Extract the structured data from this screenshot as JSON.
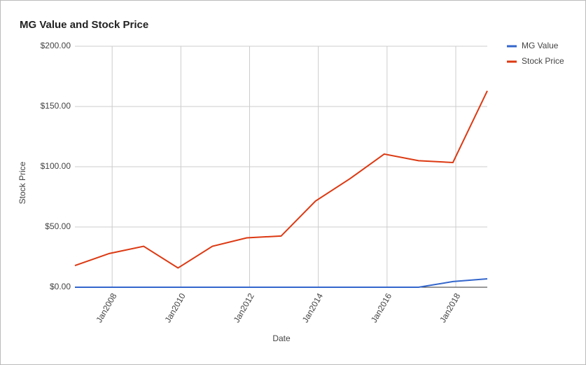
{
  "chart_data": {
    "type": "line",
    "title": "MG Value and Stock Price",
    "x_label": "Date",
    "y_label": "Stock Price",
    "x": [
      "2006-12",
      "2007-12",
      "2008-12",
      "2009-12",
      "2010-12",
      "2011-12",
      "2012-12",
      "2013-12",
      "2014-12",
      "2015-12",
      "2016-12",
      "2017-12",
      "2018-12"
    ],
    "series": [
      {
        "name": "MG Value",
        "color": "#3366cc",
        "values": [
          0,
          0,
          0,
          0,
          0,
          0,
          0,
          0,
          0,
          0,
          0,
          4.7,
          7
        ]
      },
      {
        "name": "Stock Price",
        "color": "#dc3912",
        "values": [
          18,
          28,
          34,
          16,
          34,
          41,
          42.5,
          71.5,
          90,
          110.5,
          105,
          103.5,
          163
        ]
      }
    ],
    "xlim": [
      "2006-12",
      "2018-12"
    ],
    "xticks": [
      {
        "value": "2008-01",
        "label": "Jan2008"
      },
      {
        "value": "2010-01",
        "label": "Jan2010"
      },
      {
        "value": "2012-01",
        "label": "Jan2012"
      },
      {
        "value": "2014-01",
        "label": "Jan2014"
      },
      {
        "value": "2016-01",
        "label": "Jan2016"
      },
      {
        "value": "2018-01",
        "label": "Jan2018"
      }
    ],
    "ylim": [
      0,
      200
    ],
    "yticks": [
      {
        "value": 0,
        "label": "$0.00"
      },
      {
        "value": 50,
        "label": "$50.00"
      },
      {
        "value": 100,
        "label": "$100.00"
      },
      {
        "value": 150,
        "label": "$150.00"
      },
      {
        "value": 200,
        "label": "$200.00"
      }
    ],
    "grid": true,
    "legend": "right"
  }
}
